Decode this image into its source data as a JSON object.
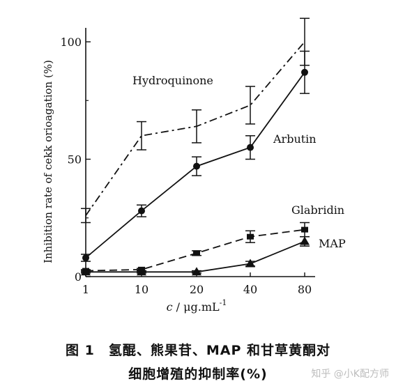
{
  "chart_data": {
    "type": "line",
    "xlabel_var": "c",
    "xlabel_unit": " / μg.mL",
    "xlabel_exp": "-1",
    "ylabel": "Inhibition rate of cekk orioagation (%)",
    "categories": [
      "1",
      "10",
      "20",
      "40",
      "80"
    ],
    "yticks": [
      0,
      50,
      100
    ],
    "ylim": [
      0,
      110
    ],
    "grid": false,
    "legend": "inline labels",
    "series": [
      {
        "name": "Hydroquinone",
        "style": "dash-dot",
        "marker": "none",
        "values": [
          26,
          60,
          64,
          73,
          100
        ],
        "errors": [
          3,
          6,
          7,
          8,
          10
        ]
      },
      {
        "name": "Arbutin",
        "style": "solid",
        "marker": "circle",
        "values": [
          8,
          28,
          47,
          55,
          87
        ],
        "errors": [
          1.5,
          2.5,
          4,
          5,
          9
        ]
      },
      {
        "name": "Glabridin",
        "style": "dashed",
        "marker": "square",
        "values": [
          2.5,
          3,
          10,
          17,
          20
        ],
        "errors": [
          0.5,
          0.5,
          1,
          2.5,
          3
        ]
      },
      {
        "name": "MAP",
        "style": "solid",
        "marker": "triangle",
        "values": [
          2,
          2,
          2,
          5.5,
          15
        ],
        "errors": [
          0.5,
          0.5,
          0.5,
          1,
          2
        ]
      }
    ]
  },
  "caption": {
    "line1": "图 1　氢醌、熊果苷、MAP 和甘草黄酮对",
    "line2": "细胞增殖的抑制率(%)"
  },
  "watermark": "知乎 @小K配方师"
}
